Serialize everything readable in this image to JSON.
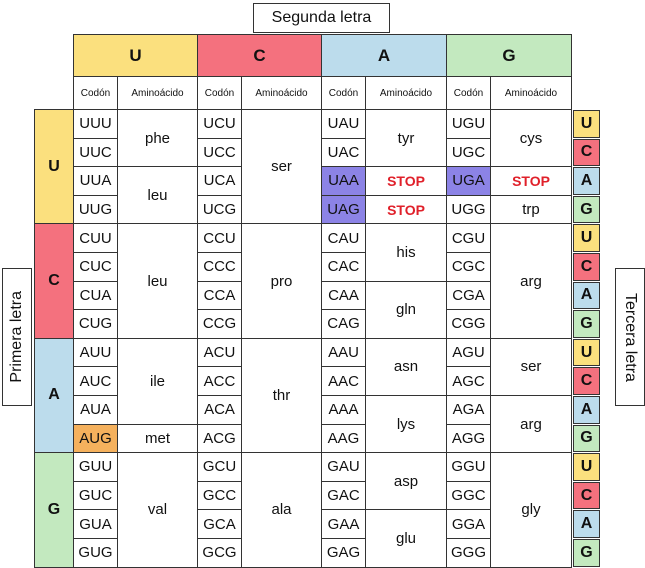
{
  "titles": {
    "second": "Segunda letra",
    "first": "Primera letra",
    "third": "Tercera letra"
  },
  "colors": {
    "U": "#fbe07e",
    "C": "#f4717e",
    "A": "#bcdcec",
    "G": "#c3e9bf",
    "stop_codon": "#8c83e6",
    "start_codon": "#f5b15d"
  },
  "second_letters": [
    {
      "label": "U",
      "color": "#fbe07e"
    },
    {
      "label": "C",
      "color": "#f4717e"
    },
    {
      "label": "A",
      "color": "#bcdcec"
    },
    {
      "label": "G",
      "color": "#c3e9bf"
    }
  ],
  "col_headers": [
    "Codón",
    "Aminoácido"
  ],
  "first_letters": [
    {
      "label": "U",
      "color": "#fbe07e"
    },
    {
      "label": "C",
      "color": "#f4717e"
    },
    {
      "label": "A",
      "color": "#bcdcec"
    },
    {
      "label": "G",
      "color": "#c3e9bf"
    }
  ],
  "third_letters": [
    {
      "label": "U",
      "color": "#fbe07e"
    },
    {
      "label": "C",
      "color": "#f4717e"
    },
    {
      "label": "A",
      "color": "#bcdcec"
    },
    {
      "label": "G",
      "color": "#c3e9bf"
    }
  ],
  "codons": [
    [
      "UUU",
      "UCU",
      "UAU",
      "UGU"
    ],
    [
      "UUC",
      "UCC",
      "UAC",
      "UGC"
    ],
    [
      "UUA",
      "UCA",
      "UAA",
      "UGA"
    ],
    [
      "UUG",
      "UCG",
      "UAG",
      "UGG"
    ],
    [
      "CUU",
      "CCU",
      "CAU",
      "CGU"
    ],
    [
      "CUC",
      "CCC",
      "CAC",
      "CGC"
    ],
    [
      "CUA",
      "CCA",
      "CAA",
      "CGA"
    ],
    [
      "CUG",
      "CCG",
      "CAG",
      "CGG"
    ],
    [
      "AUU",
      "ACU",
      "AAU",
      "AGU"
    ],
    [
      "AUC",
      "ACC",
      "AAC",
      "AGC"
    ],
    [
      "AUA",
      "ACA",
      "AAA",
      "AGA"
    ],
    [
      "AUG",
      "ACG",
      "AAG",
      "AGG"
    ],
    [
      "GUU",
      "GCU",
      "GAU",
      "GGU"
    ],
    [
      "GUC",
      "GCC",
      "GAC",
      "GGC"
    ],
    [
      "GUA",
      "GCA",
      "GAA",
      "GGA"
    ],
    [
      "GUG",
      "GCG",
      "GAG",
      "GGG"
    ]
  ],
  "highlighted_codons": {
    "stop": [
      "UAA",
      "UAG",
      "UGA"
    ],
    "start": [
      "AUG"
    ]
  },
  "amino_groups": [
    [
      [
        {
          "rows": [
            0,
            1
          ],
          "label": "phe"
        },
        {
          "rows": [
            2,
            3
          ],
          "label": "leu"
        }
      ],
      [
        {
          "rows": [
            0,
            3
          ],
          "label": "ser"
        }
      ],
      [
        {
          "rows": [
            0,
            1
          ],
          "label": "tyr"
        },
        {
          "rows": [
            2,
            2
          ],
          "label": "STOP",
          "stop": true
        },
        {
          "rows": [
            3,
            3
          ],
          "label": "STOP",
          "stop": true
        }
      ],
      [
        {
          "rows": [
            0,
            1
          ],
          "label": "cys"
        },
        {
          "rows": [
            2,
            2
          ],
          "label": "STOP",
          "stop": true
        },
        {
          "rows": [
            3,
            3
          ],
          "label": "trp"
        }
      ]
    ],
    [
      [
        {
          "rows": [
            0,
            3
          ],
          "label": "leu"
        }
      ],
      [
        {
          "rows": [
            0,
            3
          ],
          "label": "pro"
        }
      ],
      [
        {
          "rows": [
            0,
            1
          ],
          "label": "his"
        },
        {
          "rows": [
            2,
            3
          ],
          "label": "gln"
        }
      ],
      [
        {
          "rows": [
            0,
            3
          ],
          "label": "arg"
        }
      ]
    ],
    [
      [
        {
          "rows": [
            0,
            2
          ],
          "label": "ile"
        },
        {
          "rows": [
            3,
            3
          ],
          "label": "met"
        }
      ],
      [
        {
          "rows": [
            0,
            3
          ],
          "label": "thr"
        }
      ],
      [
        {
          "rows": [
            0,
            1
          ],
          "label": "asn"
        },
        {
          "rows": [
            2,
            3
          ],
          "label": "lys"
        }
      ],
      [
        {
          "rows": [
            0,
            1
          ],
          "label": "ser"
        },
        {
          "rows": [
            2,
            3
          ],
          "label": "arg"
        }
      ]
    ],
    [
      [
        {
          "rows": [
            0,
            3
          ],
          "label": "val"
        }
      ],
      [
        {
          "rows": [
            0,
            3
          ],
          "label": "ala"
        }
      ],
      [
        {
          "rows": [
            0,
            1
          ],
          "label": "asp"
        },
        {
          "rows": [
            2,
            3
          ],
          "label": "glu"
        }
      ],
      [
        {
          "rows": [
            0,
            3
          ],
          "label": "gly"
        }
      ]
    ]
  ]
}
